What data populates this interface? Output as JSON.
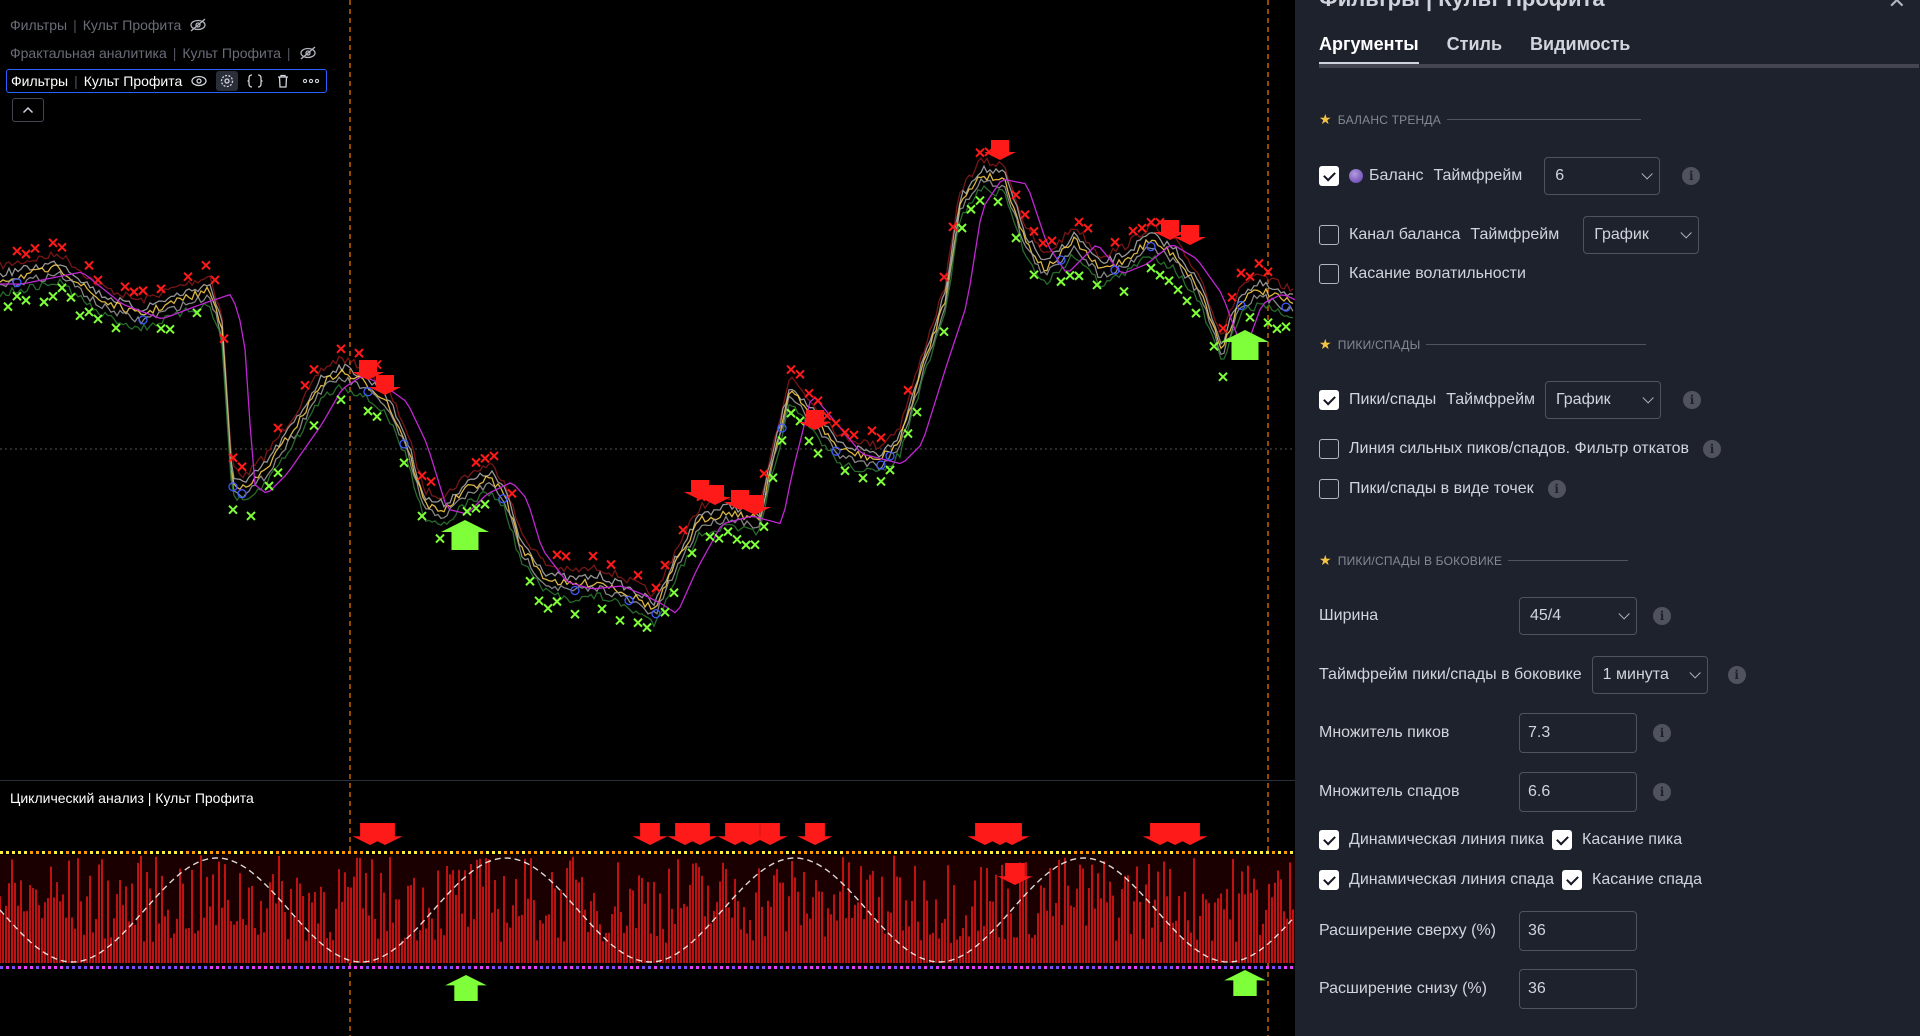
{
  "chart": {
    "legend_1": {
      "name": "Фильтры",
      "source": "Культ Профита"
    },
    "legend_2": {
      "name": "Фрактальная аналитика",
      "source": "Культ Профита"
    },
    "legend_3": {
      "name": "Фильтры",
      "source": "Культ Профита"
    },
    "lower_pane_title": "Циклический анализ | Культ Профита",
    "separator": "|",
    "icons": {
      "hidden": "eye-off-icon",
      "visible": "eye-icon",
      "settings": "gear-icon",
      "source": "braces-icon",
      "delete": "trash-icon",
      "more": "more-icon",
      "collapse": "chevron-up-icon"
    },
    "colors": {
      "bullish": "#7fff3a",
      "bearish": "#ff1a1a",
      "cycle_line": "#ffffff",
      "guide_line": "#f57c00",
      "balance_line": "#c026d3"
    }
  },
  "panel": {
    "header": "Фильтры | Культ Профита",
    "tabs": [
      "Аргументы",
      "Стиль",
      "Видимость"
    ],
    "sections": {
      "trend_balance": "БАЛАНС ТРЕНДА",
      "peaks": "ПИКИ/СПАДЫ",
      "flat_peaks": "ПИКИ/СПАДЫ В БОКОВИКЕ"
    },
    "balance": {
      "checked": true,
      "label": "Баланс",
      "timeframe_label": "Таймфрейм",
      "value": "6"
    },
    "balance_channel": {
      "checked": false,
      "label": "Канал баланса",
      "timeframe_label": "Таймфрейм",
      "value": "График"
    },
    "volatility_touch": {
      "checked": false,
      "label": "Касание волатильности"
    },
    "peaks": {
      "checked": true,
      "label": "Пики/спады",
      "timeframe_label": "Таймфрейм",
      "value": "График"
    },
    "strong_line": {
      "checked": false,
      "label": "Линия сильных пиков/спадов. Фильтр откатов"
    },
    "peaks_dots": {
      "checked": false,
      "label": "Пики/спады в виде точек"
    },
    "width": {
      "label": "Ширина",
      "value": "45/4"
    },
    "flat_timeframe": {
      "label": "Таймфрейм пики/спады в боковике",
      "value": "1 минута"
    },
    "peak_mult": {
      "label": "Множитель пиков",
      "value": "7.3"
    },
    "trough_mult": {
      "label": "Множитель спадов",
      "value": "6.6"
    },
    "dyn_peak_line": {
      "checked": true,
      "label": "Динамическая линия пика"
    },
    "peak_touch": {
      "checked": true,
      "label": "Касание пика"
    },
    "dyn_trough_line": {
      "checked": true,
      "label": "Динамическая линия спада"
    },
    "trough_touch": {
      "checked": true,
      "label": "Касание спада"
    },
    "ext_top": {
      "label": "Расширение сверху (%)",
      "value": "36"
    },
    "ext_bottom": {
      "label": "Расширение снизу (%)",
      "value": "36"
    }
  }
}
